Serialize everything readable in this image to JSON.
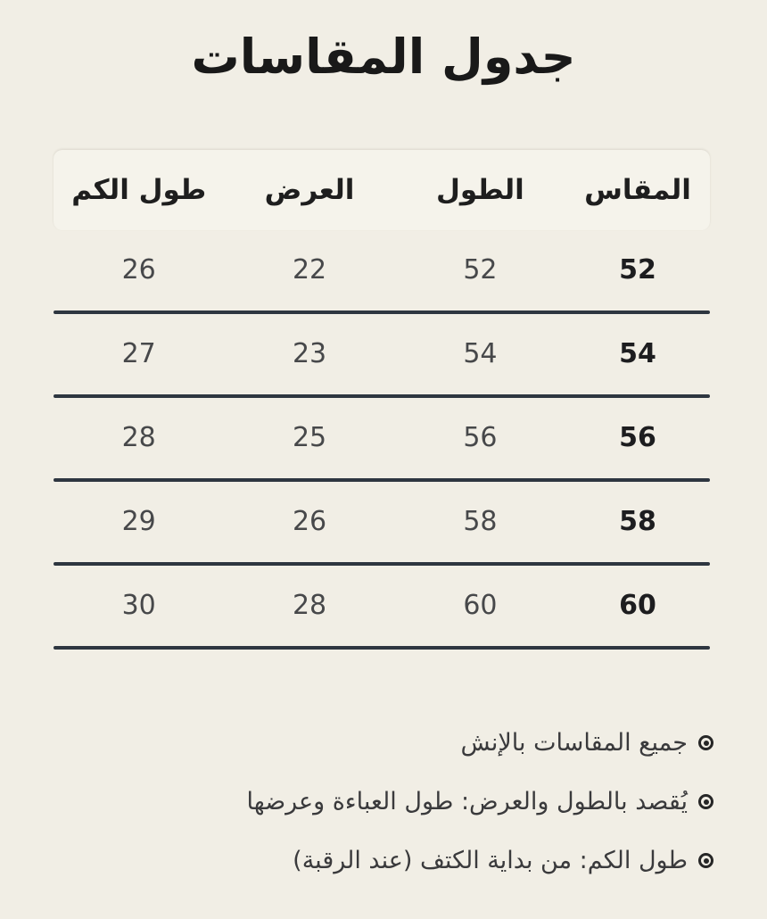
{
  "title": "جدول المقاسات",
  "colors": {
    "background": "#f1eee5",
    "header_band": "#f5f3eb",
    "divider": "#2e3640",
    "title_text": "#191919",
    "value_text": "#47484a",
    "size_text": "#1d1d1f"
  },
  "table": {
    "columns": [
      "المقاس",
      "الطول",
      "العرض",
      "طول الكم"
    ],
    "rows": [
      {
        "size": "52",
        "length": "52",
        "width": "22",
        "sleeve": "26"
      },
      {
        "size": "54",
        "length": "54",
        "width": "23",
        "sleeve": "27"
      },
      {
        "size": "56",
        "length": "56",
        "width": "25",
        "sleeve": "28"
      },
      {
        "size": "58",
        "length": "58",
        "width": "26",
        "sleeve": "29"
      },
      {
        "size": "60",
        "length": "60",
        "width": "28",
        "sleeve": "30"
      }
    ]
  },
  "notes": [
    {
      "text": "جميع المقاسات بالإنش"
    },
    {
      "text": "يُقصد بالطول والعرض: طول العباءة وعرضها"
    },
    {
      "text": "طول الكم: من بداية الكتف (عند الرقبة)"
    }
  ]
}
